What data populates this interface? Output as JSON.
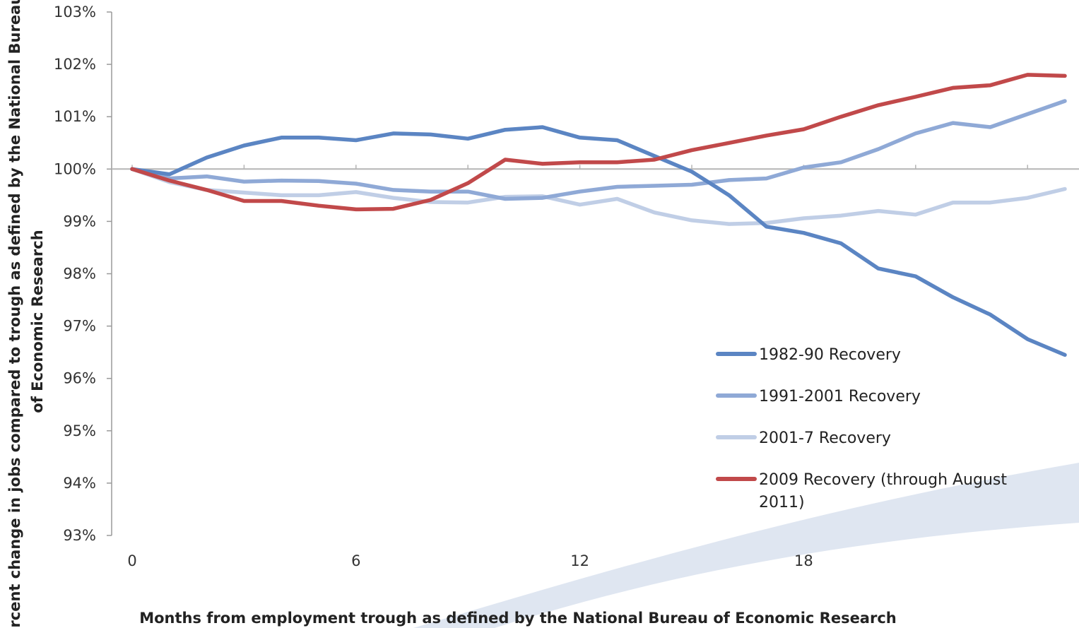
{
  "chart_data": {
    "type": "line",
    "xlabel": "Months from employment trough as defined by the National Bureau of Economic Research",
    "ylabel_lines": [
      "Percent change in jobs compared to trough as defined by the National Bureau",
      "of Economic Research"
    ],
    "x_ticks": [
      "0",
      "6",
      "12",
      "18"
    ],
    "x_tick_values": [
      0,
      6,
      12,
      18
    ],
    "y_ticks": [
      "103%",
      "102%",
      "101%",
      "100%",
      "99%",
      "98%",
      "97%",
      "96%",
      "95%",
      "94%",
      "93%"
    ],
    "y_tick_values": [
      103,
      102,
      101,
      100,
      99,
      98,
      97,
      96,
      95,
      94,
      93
    ],
    "xlim": [
      0,
      25
    ],
    "ylim": [
      93,
      103
    ],
    "reference_line": 100,
    "legend_position": "bottom-right",
    "series": [
      {
        "name": "1982-90 Recovery",
        "color": "#5b85c3",
        "values": [
          100,
          99.9,
          100.22,
          100.45,
          100.6,
          100.6,
          100.55,
          100.68,
          100.66,
          100.58,
          100.75,
          100.8,
          100.6,
          100.55,
          100.25,
          99.95,
          99.5,
          98.9,
          98.78,
          98.58,
          98.1,
          97.95,
          97.55,
          97.22,
          96.75,
          96.45
        ]
      },
      {
        "name": "1991-2001 Recovery",
        "color": "#8fa9d6",
        "values": [
          100,
          99.82,
          99.86,
          99.76,
          99.78,
          99.77,
          99.72,
          99.6,
          99.57,
          99.57,
          99.43,
          99.45,
          99.57,
          99.66,
          99.68,
          99.7,
          99.79,
          99.82,
          100.03,
          100.13,
          100.38,
          100.68,
          100.88,
          100.8,
          101.05,
          101.3
        ]
      },
      {
        "name": "2001-7 Recovery",
        "color": "#c0cee6",
        "values": [
          100,
          99.75,
          99.6,
          99.55,
          99.5,
          99.5,
          99.56,
          99.45,
          99.37,
          99.36,
          99.47,
          99.48,
          99.32,
          99.43,
          99.17,
          99.02,
          98.95,
          98.97,
          99.06,
          99.11,
          99.2,
          99.13,
          99.36,
          99.36,
          99.45,
          99.62
        ]
      },
      {
        "name": "2009 Recovery (through August 2011)",
        "color": "#c1494a",
        "values": [
          100,
          99.78,
          99.6,
          99.39,
          99.39,
          99.3,
          99.23,
          99.24,
          99.41,
          99.73,
          100.18,
          100.1,
          100.13,
          100.13,
          100.18,
          100.36,
          100.5,
          100.64,
          100.76,
          101.0,
          101.22,
          101.38,
          101.55,
          101.6,
          101.8,
          101.78
        ]
      }
    ]
  }
}
